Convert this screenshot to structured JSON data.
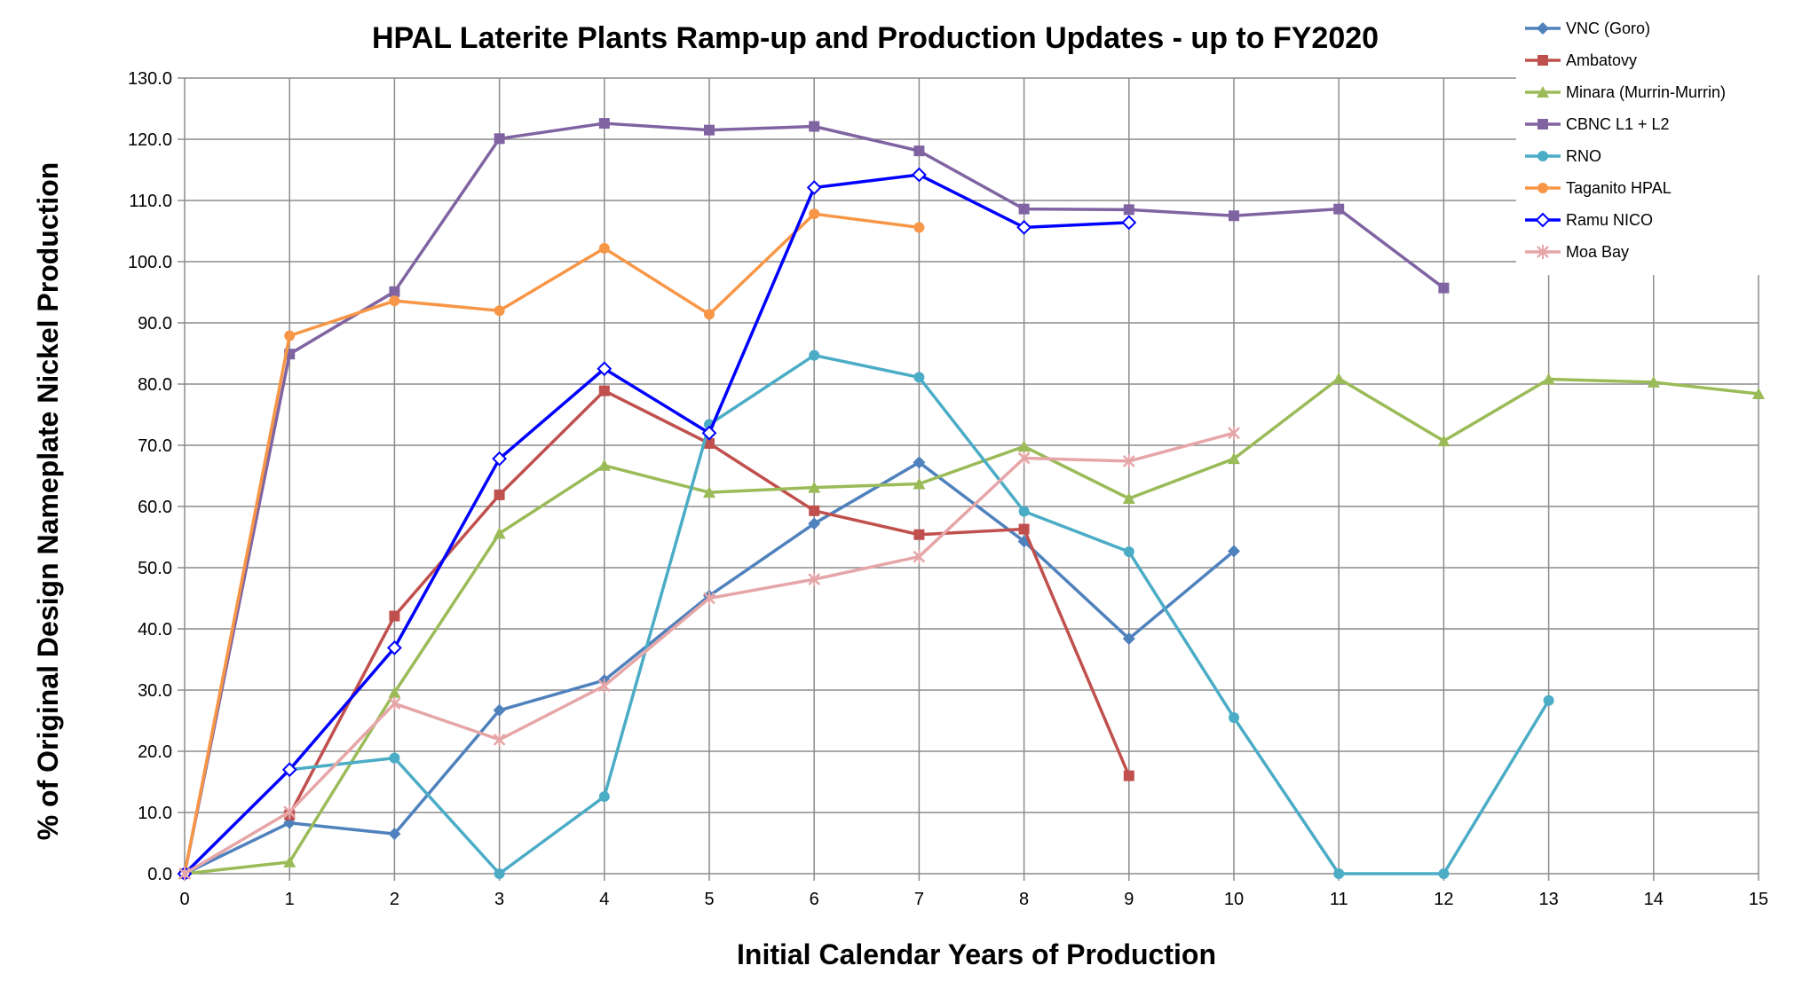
{
  "chart_data": {
    "type": "line",
    "title": "HPAL Laterite Plants Ramp-up and Production Updates - up to FY2020",
    "xlabel": "Initial Calendar Years of Production",
    "ylabel": "% of Original Design Nameplate Nickel Production",
    "xlim": [
      0,
      15
    ],
    "ylim": [
      0,
      130
    ],
    "x_ticks": [
      "0",
      "1",
      "2",
      "3",
      "4",
      "5",
      "6",
      "7",
      "8",
      "9",
      "10",
      "11",
      "12",
      "13",
      "14",
      "15"
    ],
    "y_ticks": [
      "0.0",
      "10.0",
      "20.0",
      "30.0",
      "40.0",
      "50.0",
      "60.0",
      "70.0",
      "80.0",
      "90.0",
      "100.0",
      "110.0",
      "120.0",
      "130.0"
    ],
    "grid": true,
    "legend_position": "top-right",
    "series": [
      {
        "name": "VNC (Goro)",
        "color": "#4f81bd",
        "marker": "diamond",
        "x": [
          0,
          1,
          2,
          3,
          4,
          5,
          6,
          7,
          8,
          9,
          10
        ],
        "values": [
          0,
          8.3,
          6.5,
          26.7,
          31.6,
          45.4,
          57.2,
          67.2,
          54.3,
          38.4,
          52.7
        ]
      },
      {
        "name": "Ambatovy",
        "color": "#c0504d",
        "marker": "square",
        "x": [
          1,
          2,
          3,
          4,
          5,
          6,
          7,
          8,
          9
        ],
        "values": [
          9.6,
          42.1,
          61.9,
          78.9,
          70.3,
          59.3,
          55.4,
          56.3,
          16.0
        ]
      },
      {
        "name": "Minara (Murrin-Murrin)",
        "color": "#9bbb59",
        "marker": "triangle",
        "x": [
          0,
          1,
          2,
          3,
          4,
          5,
          6,
          7,
          8,
          9,
          10,
          11,
          12,
          13,
          14,
          15
        ],
        "values": [
          0,
          1.9,
          29.6,
          55.6,
          66.7,
          62.3,
          63.1,
          63.7,
          69.8,
          61.3,
          67.8,
          80.9,
          70.7,
          80.8,
          80.3,
          78.4
        ]
      },
      {
        "name": "CBNC L1 + L2",
        "color": "#8064a2",
        "marker": "square",
        "x": [
          0,
          1,
          2,
          3,
          4,
          5,
          6,
          7,
          8,
          9,
          10,
          11,
          12
        ],
        "values": [
          0,
          84.9,
          95.1,
          120.1,
          122.6,
          121.5,
          122.1,
          118.1,
          108.6,
          108.5,
          107.5,
          108.6,
          95.7
        ]
      },
      {
        "name": "RNO",
        "color": "#4bacc6",
        "marker": "circle",
        "x": [
          1,
          2,
          3,
          4,
          5,
          6,
          7,
          8,
          9,
          10,
          11,
          12,
          13
        ],
        "values": [
          17.0,
          18.9,
          0.0,
          12.6,
          73.4,
          84.7,
          81.1,
          59.2,
          52.6,
          25.5,
          0.0,
          0.0,
          28.3
        ]
      },
      {
        "name": "Taganito HPAL",
        "color": "#f79646",
        "marker": "circle",
        "x": [
          0,
          1,
          2,
          3,
          4,
          5,
          6,
          7
        ],
        "values": [
          0,
          87.9,
          93.6,
          92.0,
          102.2,
          91.4,
          107.8,
          105.6
        ]
      },
      {
        "name": "Ramu NICO",
        "color": "#0000ff",
        "marker": "diamond-open",
        "x": [
          0,
          1,
          2,
          3,
          4,
          5,
          6,
          7,
          8,
          9
        ],
        "values": [
          0,
          17.0,
          36.9,
          67.8,
          82.5,
          72.0,
          112.1,
          114.2,
          105.6,
          106.4
        ]
      },
      {
        "name": "Moa Bay",
        "color": "#e6a6a8",
        "marker": "x",
        "x": [
          0,
          1,
          2,
          3,
          4,
          5,
          6,
          7,
          8,
          9,
          10
        ],
        "values": [
          0,
          10.1,
          27.8,
          21.9,
          30.7,
          45.0,
          48.1,
          51.8,
          67.9,
          67.4,
          72.0
        ]
      }
    ]
  }
}
